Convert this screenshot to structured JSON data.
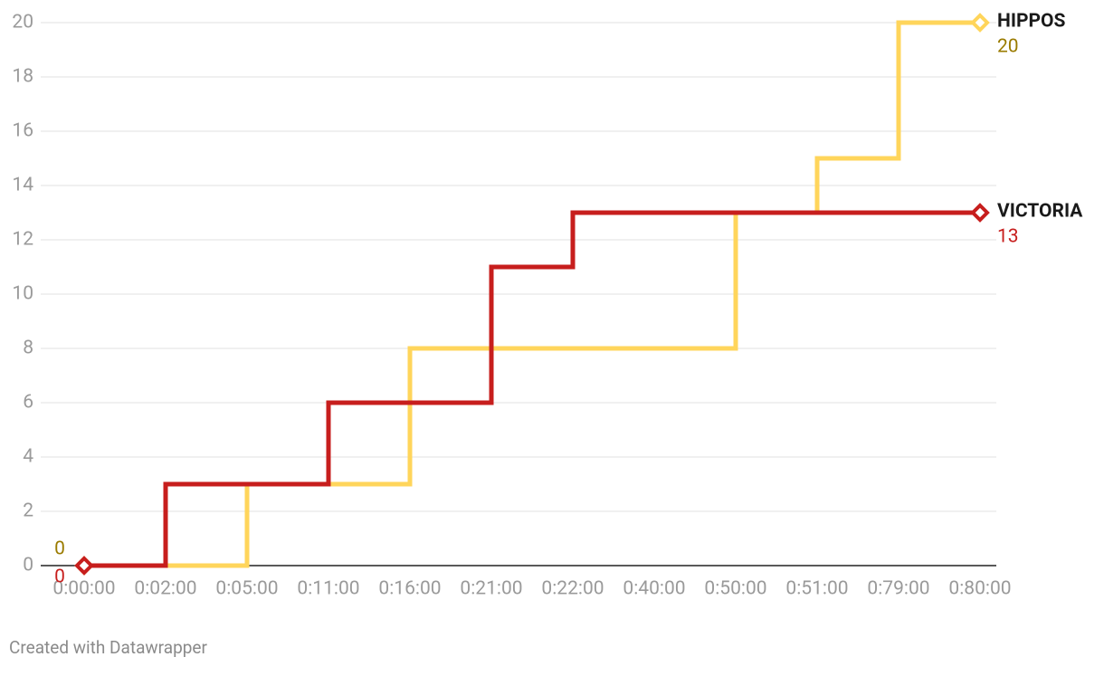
{
  "chart_data": {
    "type": "line",
    "step": true,
    "categories": [
      "0:00:00",
      "0:02:00",
      "0:05:00",
      "0:11:00",
      "0:16:00",
      "0:21:00",
      "0:22:00",
      "0:40:00",
      "0:50:00",
      "0:51:00",
      "0:79:00",
      "0:80:00"
    ],
    "series": [
      {
        "name": "HIPPOS",
        "color": "#ffd55b",
        "label_color": "#9a7b00",
        "values": [
          0,
          0,
          3,
          3,
          8,
          8,
          8,
          8,
          13,
          15,
          20,
          20
        ]
      },
      {
        "name": "VICTORIA",
        "color": "#c71e1d",
        "label_color": "#c71e1d",
        "values": [
          0,
          3,
          3,
          6,
          6,
          11,
          13,
          13,
          13,
          13,
          13,
          13
        ]
      }
    ],
    "ylim": [
      0,
      20
    ],
    "yticks": [
      0,
      2,
      4,
      6,
      8,
      10,
      12,
      14,
      16,
      18,
      20
    ],
    "grid": true,
    "source": "Created with Datawrapper"
  }
}
